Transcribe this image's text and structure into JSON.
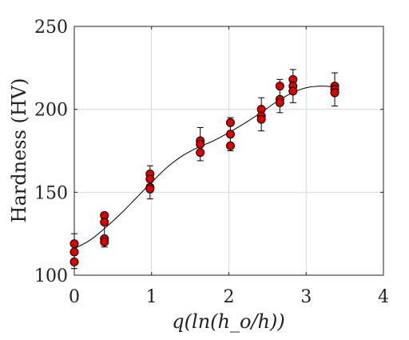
{
  "chart_data": {
    "type": "scatter",
    "title": "",
    "xlabel": "q(ln(h_o/h))",
    "ylabel": "Hardness (HV)",
    "xlim": [
      0,
      4
    ],
    "ylim": [
      100,
      250
    ],
    "xticks": [
      "0",
      "1",
      "2",
      "3",
      "4"
    ],
    "yticks": [
      "100",
      "150",
      "200",
      "250"
    ],
    "grid": true,
    "marker_color": "#dd0000",
    "points": [
      {
        "x": 0.0,
        "y": 119
      },
      {
        "x": 0.0,
        "y": 114
      },
      {
        "x": 0.0,
        "y": 108
      },
      {
        "x": 0.39,
        "y": 136
      },
      {
        "x": 0.39,
        "y": 132
      },
      {
        "x": 0.39,
        "y": 122
      },
      {
        "x": 0.39,
        "y": 120
      },
      {
        "x": 0.98,
        "y": 161
      },
      {
        "x": 0.98,
        "y": 158
      },
      {
        "x": 0.98,
        "y": 153
      },
      {
        "x": 0.98,
        "y": 152
      },
      {
        "x": 1.63,
        "y": 181
      },
      {
        "x": 1.63,
        "y": 179
      },
      {
        "x": 1.63,
        "y": 174
      },
      {
        "x": 2.02,
        "y": 192
      },
      {
        "x": 2.02,
        "y": 185
      },
      {
        "x": 2.02,
        "y": 178
      },
      {
        "x": 2.42,
        "y": 200
      },
      {
        "x": 2.42,
        "y": 196
      },
      {
        "x": 2.42,
        "y": 194
      },
      {
        "x": 2.66,
        "y": 214
      },
      {
        "x": 2.66,
        "y": 206
      },
      {
        "x": 2.66,
        "y": 204
      },
      {
        "x": 2.83,
        "y": 218
      },
      {
        "x": 2.83,
        "y": 214
      },
      {
        "x": 2.83,
        "y": 211
      },
      {
        "x": 3.37,
        "y": 214
      },
      {
        "x": 3.37,
        "y": 212
      },
      {
        "x": 3.37,
        "y": 210
      }
    ],
    "error_bars": [
      {
        "x": 0.0,
        "low": 104,
        "high": 125
      },
      {
        "x": 0.39,
        "low": 117,
        "high": 137
      },
      {
        "x": 0.98,
        "low": 146,
        "high": 166
      },
      {
        "x": 1.63,
        "low": 169,
        "high": 189
      },
      {
        "x": 2.02,
        "low": 175,
        "high": 195
      },
      {
        "x": 2.42,
        "low": 187,
        "high": 207
      },
      {
        "x": 2.66,
        "low": 198,
        "high": 218
      },
      {
        "x": 2.83,
        "low": 204,
        "high": 224
      },
      {
        "x": 3.37,
        "low": 202,
        "high": 222
      }
    ],
    "fit_curve": {
      "x": [
        0,
        0.2,
        0.4,
        0.6,
        0.8,
        1.0,
        1.2,
        1.4,
        1.6,
        1.8,
        2.0,
        2.2,
        2.4,
        2.6,
        2.8,
        3.0,
        3.2,
        3.37
      ],
      "y": [
        116,
        121,
        128.5,
        137,
        146.5,
        156,
        165,
        172,
        177,
        181,
        186,
        191.5,
        197.5,
        204,
        209.5,
        213,
        214,
        213.5
      ]
    }
  }
}
